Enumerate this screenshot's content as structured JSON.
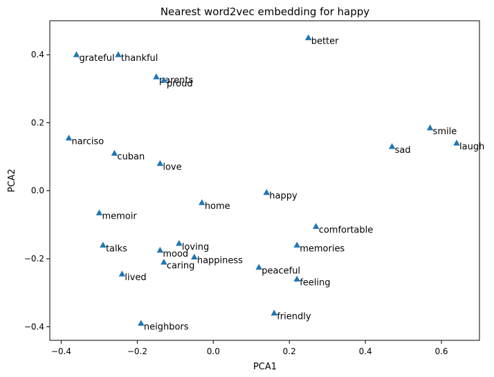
{
  "chart_data": {
    "type": "scatter",
    "title": "Nearest word2vec embedding for happy",
    "xlabel": "PCA1",
    "ylabel": "PCA2",
    "xlim": [
      -0.43,
      0.7
    ],
    "ylim": [
      -0.44,
      0.5
    ],
    "xticks": [
      -0.4,
      -0.2,
      0.0,
      0.2,
      0.4,
      0.6
    ],
    "yticks": [
      -0.4,
      -0.2,
      0.0,
      0.2,
      0.4
    ],
    "xtick_labels": [
      "−0.4",
      "−0.2",
      "0.0",
      "0.2",
      "0.4",
      "0.6"
    ],
    "ytick_labels": [
      "−0.4",
      "−0.2",
      "0.0",
      "0.2",
      "0.4"
    ],
    "grid": false,
    "marker": "triangle",
    "color": "#1f77b4",
    "points": [
      {
        "label": "better",
        "x": 0.25,
        "y": 0.45
      },
      {
        "label": "grateful",
        "x": -0.36,
        "y": 0.4
      },
      {
        "label": "thankful",
        "x": -0.25,
        "y": 0.4
      },
      {
        "label": "parents",
        "x": -0.15,
        "y": 0.335
      },
      {
        "label": "proud",
        "x": -0.13,
        "y": 0.325
      },
      {
        "label": "smile",
        "x": 0.57,
        "y": 0.185
      },
      {
        "label": "laugh",
        "x": 0.64,
        "y": 0.14
      },
      {
        "label": "sad",
        "x": 0.47,
        "y": 0.13
      },
      {
        "label": "narciso",
        "x": -0.38,
        "y": 0.155
      },
      {
        "label": "cuban",
        "x": -0.26,
        "y": 0.11
      },
      {
        "label": "love",
        "x": -0.14,
        "y": 0.08
      },
      {
        "label": "happy",
        "x": 0.14,
        "y": -0.005
      },
      {
        "label": "home",
        "x": -0.03,
        "y": -0.035
      },
      {
        "label": "memoir",
        "x": -0.3,
        "y": -0.065
      },
      {
        "label": "comfortable",
        "x": 0.27,
        "y": -0.105
      },
      {
        "label": "talks",
        "x": -0.29,
        "y": -0.16
      },
      {
        "label": "loving",
        "x": -0.09,
        "y": -0.155
      },
      {
        "label": "memories",
        "x": 0.22,
        "y": -0.16
      },
      {
        "label": "mood",
        "x": -0.14,
        "y": -0.175
      },
      {
        "label": "happiness",
        "x": -0.05,
        "y": -0.195
      },
      {
        "label": "caring",
        "x": -0.13,
        "y": -0.21
      },
      {
        "label": "peaceful",
        "x": 0.12,
        "y": -0.225
      },
      {
        "label": "lived",
        "x": -0.24,
        "y": -0.245
      },
      {
        "label": "feeling",
        "x": 0.22,
        "y": -0.26
      },
      {
        "label": "friendly",
        "x": 0.16,
        "y": -0.36
      },
      {
        "label": "neighbors",
        "x": -0.19,
        "y": -0.39
      }
    ]
  }
}
